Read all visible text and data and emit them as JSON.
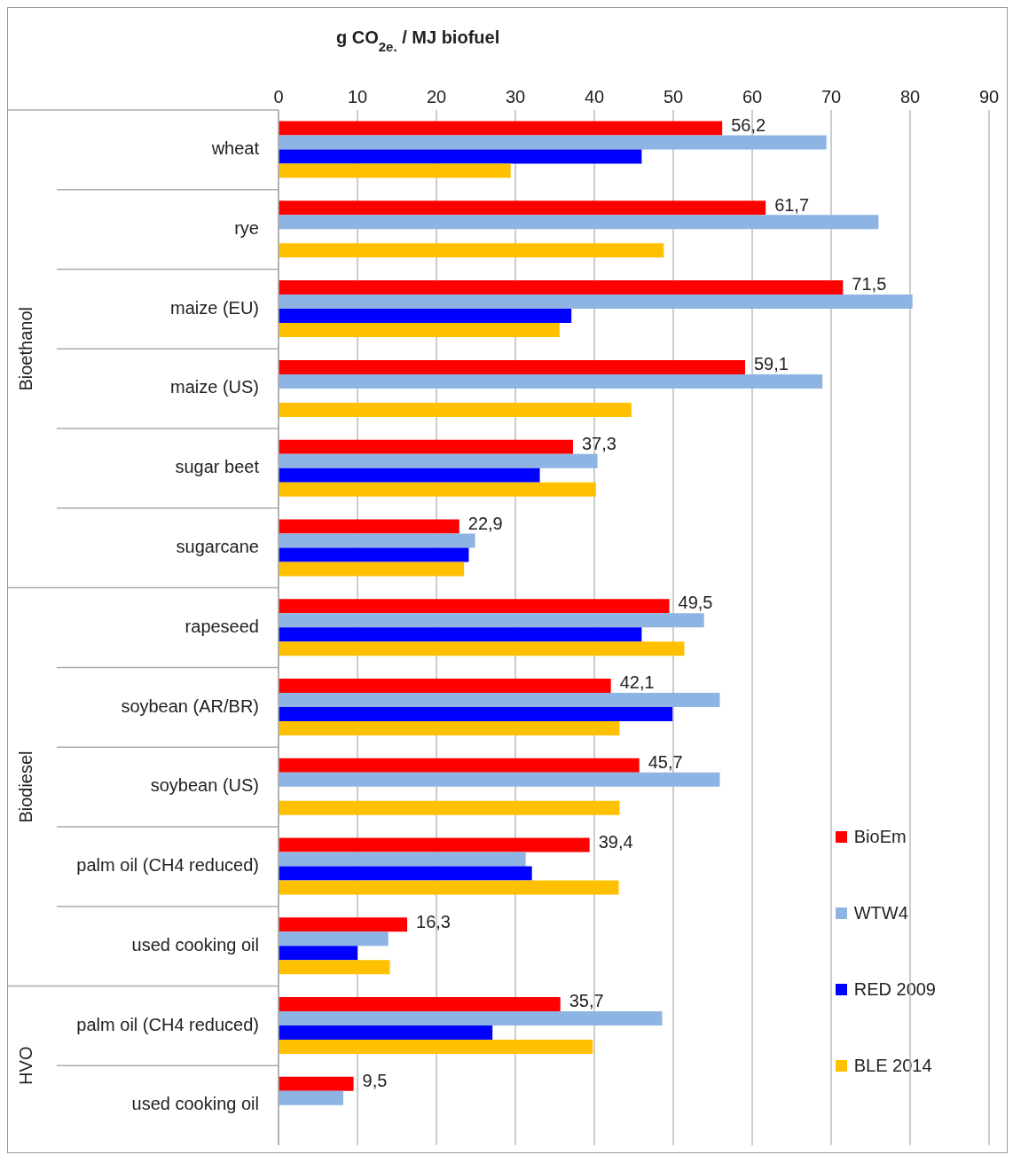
{
  "chart_data": {
    "type": "bar",
    "orientation": "horizontal",
    "xlabel": "g CO$_{2e.}$/ MJ biofuel",
    "categories": [
      "wheat",
      "rye",
      "maize (EU)",
      "maize (US)",
      "sugar beet",
      "sugarcane",
      "rapeseed",
      "soybean (AR/BR)",
      "soybean (US)",
      "palm oil (CH4 reduced)",
      "used cooking oil",
      "palm oil (CH4 reduced)",
      "used cooking oil"
    ],
    "series": [
      {
        "name": "BioEm",
        "color": "#ff0000",
        "values": [
          56.2,
          61.7,
          71.5,
          59.1,
          37.3,
          22.9,
          49.5,
          42.1,
          45.7,
          39.4,
          16.3,
          35.7,
          9.5
        ],
        "value_labels": [
          "56,2",
          "61,7",
          "71,5",
          "59,1",
          "37,3",
          "22,9",
          "49,5",
          "42,1",
          "45,7",
          "39,4",
          "16,3",
          "35,7",
          "9,5"
        ]
      },
      {
        "name": "WTW4",
        "color": "#8db4e2",
        "values": [
          69.4,
          76.0,
          80.3,
          68.9,
          40.4,
          24.9,
          53.9,
          55.9,
          55.9,
          31.3,
          13.9,
          48.6,
          8.2
        ]
      },
      {
        "name": "RED 2009",
        "color": "#0000ff",
        "values": [
          46.0,
          null,
          37.1,
          null,
          33.1,
          24.1,
          46.0,
          49.9,
          null,
          32.1,
          10.0,
          27.1,
          null
        ]
      },
      {
        "name": "BLE 2014",
        "color": "#ffc000",
        "values": [
          29.4,
          48.8,
          35.6,
          44.7,
          40.2,
          23.5,
          51.4,
          43.2,
          43.2,
          43.1,
          14.1,
          39.8,
          null
        ]
      }
    ],
    "xlim": [
      0,
      90
    ],
    "xticks": [
      0,
      10,
      20,
      30,
      40,
      50,
      60,
      70,
      80,
      90
    ],
    "grid": "x",
    "legend": "bottom right",
    "annotations": [
      "Bioethanol",
      "Biodiesel",
      "HVO"
    ]
  }
}
